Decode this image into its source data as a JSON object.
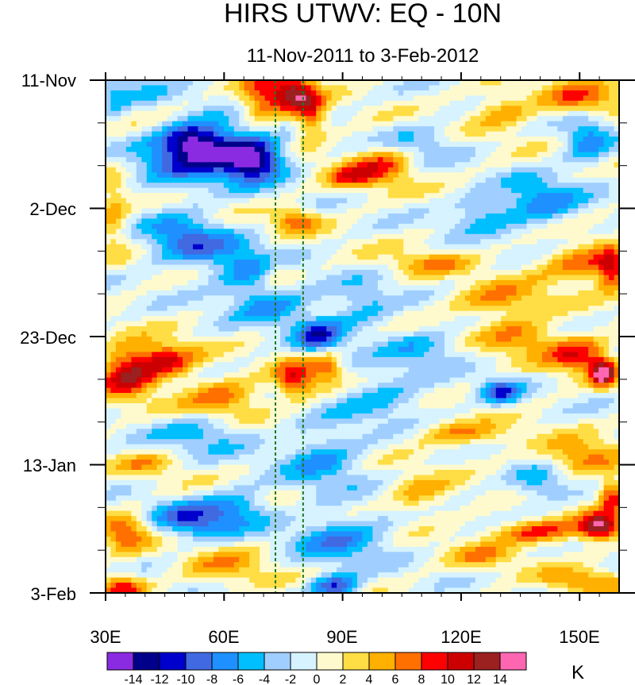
{
  "chart_data": {
    "type": "heatmap",
    "title": "HIRS UTWV: EQ - 10N",
    "subtitle": "11-Nov-2011 to 3-Feb-2012",
    "x_axis": {
      "range": [
        30,
        160
      ],
      "ticks": [
        30,
        60,
        90,
        120,
        150
      ],
      "tick_labels": [
        "30E",
        "60E",
        "90E",
        "120E",
        "150E"
      ]
    },
    "y_axis": {
      "range_days": [
        0,
        84
      ],
      "ticks_days": [
        0,
        21,
        42,
        63,
        84
      ],
      "tick_labels": [
        "11-Nov",
        "2-Dec",
        "23-Dec",
        "13-Jan",
        "3-Feb"
      ],
      "minor_tick_step_days": 7
    },
    "reference_lines_lon": [
      73,
      80
    ],
    "colorbar": {
      "unit": "K",
      "levels": [
        -14,
        -12,
        -10,
        -8,
        -6,
        -4,
        -2,
        0,
        2,
        4,
        6,
        8,
        10,
        12,
        14
      ],
      "level_labels": [
        "-14",
        "-12",
        "-10",
        "-8",
        "-6",
        "-4",
        "-2",
        "0",
        "2",
        "4",
        "6",
        "8",
        "10",
        "12",
        "14"
      ],
      "colors": [
        "#8a2be2",
        "#00008b",
        "#0000cd",
        "#4169e1",
        "#1e90ff",
        "#00bfff",
        "#a0cfff",
        "#d6f3ff",
        "#fffacd",
        "#ffdd44",
        "#ffb000",
        "#ff7000",
        "#ff0000",
        "#cc0000",
        "#9b2020",
        "#ff66b2"
      ]
    },
    "anomaly_features": [
      {
        "lon": 70,
        "day": 3,
        "value": 9,
        "lon_w": 6,
        "day_w": 4
      },
      {
        "lon": 78,
        "day": 2,
        "value": 11,
        "lon_w": 5,
        "day_w": 3
      },
      {
        "lon": 82,
        "day": 6,
        "value": 8,
        "lon_w": 4,
        "day_w": 4
      },
      {
        "lon": 40,
        "day": 2,
        "value": -3,
        "lon_w": 6,
        "day_w": 3
      },
      {
        "lon": 32,
        "day": 3,
        "value": -5,
        "lon_w": 4,
        "day_w": 3
      },
      {
        "lon": 52,
        "day": 10,
        "value": -11,
        "lon_w": 8,
        "day_w": 3
      },
      {
        "lon": 68,
        "day": 13,
        "value": -12,
        "lon_w": 7,
        "day_w": 3
      },
      {
        "lon": 60,
        "day": 12,
        "value": -9,
        "lon_w": 12,
        "day_w": 5
      },
      {
        "lon": 45,
        "day": 14,
        "value": -5,
        "lon_w": 10,
        "day_w": 4
      },
      {
        "lon": 100,
        "day": 14,
        "value": 8,
        "lon_w": 8,
        "day_w": 3
      },
      {
        "lon": 92,
        "day": 16,
        "value": 7,
        "lon_w": 6,
        "day_w": 2
      },
      {
        "lon": 130,
        "day": 5,
        "value": 5,
        "lon_w": 8,
        "day_w": 3
      },
      {
        "lon": 150,
        "day": 3,
        "value": 7,
        "lon_w": 10,
        "day_w": 3
      },
      {
        "lon": 152,
        "day": 10,
        "value": -7,
        "lon_w": 6,
        "day_w": 4
      },
      {
        "lon": 110,
        "day": 10,
        "value": -4,
        "lon_w": 10,
        "day_w": 3
      },
      {
        "lon": 32,
        "day": 22,
        "value": 5,
        "lon_w": 4,
        "day_w": 6
      },
      {
        "lon": 78,
        "day": 23,
        "value": 7,
        "lon_w": 6,
        "day_w": 2
      },
      {
        "lon": 50,
        "day": 26,
        "value": -8,
        "lon_w": 10,
        "day_w": 4
      },
      {
        "lon": 64,
        "day": 30,
        "value": -6,
        "lon_w": 10,
        "day_w": 4
      },
      {
        "lon": 74,
        "day": 32,
        "value": 5,
        "lon_w": 5,
        "day_w": 3
      },
      {
        "lon": 72,
        "day": 36,
        "value": -7,
        "lon_w": 10,
        "day_w": 4
      },
      {
        "lon": 84,
        "day": 42,
        "value": -10,
        "lon_w": 6,
        "day_w": 3
      },
      {
        "lon": 95,
        "day": 37,
        "value": -5,
        "lon_w": 8,
        "day_w": 4
      },
      {
        "lon": 112,
        "day": 30,
        "value": 5,
        "lon_w": 10,
        "day_w": 2
      },
      {
        "lon": 130,
        "day": 36,
        "value": 6,
        "lon_w": 12,
        "day_w": 3
      },
      {
        "lon": 150,
        "day": 30,
        "value": 7,
        "lon_w": 10,
        "day_w": 3
      },
      {
        "lon": 158,
        "day": 31,
        "value": 10,
        "lon_w": 4,
        "day_w": 3
      },
      {
        "lon": 140,
        "day": 20,
        "value": -7,
        "lon_w": 10,
        "day_w": 4
      },
      {
        "lon": 125,
        "day": 22,
        "value": -5,
        "lon_w": 8,
        "day_w": 3
      },
      {
        "lon": 35,
        "day": 48,
        "value": 11,
        "lon_w": 7,
        "day_w": 4
      },
      {
        "lon": 45,
        "day": 46,
        "value": 10,
        "lon_w": 8,
        "day_w": 3
      },
      {
        "lon": 60,
        "day": 52,
        "value": 7,
        "lon_w": 10,
        "day_w": 3
      },
      {
        "lon": 78,
        "day": 49,
        "value": 10,
        "lon_w": 5,
        "day_w": 3
      },
      {
        "lon": 86,
        "day": 47,
        "value": 7,
        "lon_w": 4,
        "day_w": 3
      },
      {
        "lon": 150,
        "day": 45,
        "value": 9,
        "lon_w": 8,
        "day_w": 3
      },
      {
        "lon": 156,
        "day": 48,
        "value": 15,
        "lon_w": 3,
        "day_w": 2
      },
      {
        "lon": 135,
        "day": 42,
        "value": 6,
        "lon_w": 10,
        "day_w": 3
      },
      {
        "lon": 110,
        "day": 44,
        "value": -5,
        "lon_w": 10,
        "day_w": 3
      },
      {
        "lon": 130,
        "day": 51,
        "value": -9,
        "lon_w": 5,
        "day_w": 2
      },
      {
        "lon": 100,
        "day": 52,
        "value": -5,
        "lon_w": 12,
        "day_w": 4
      },
      {
        "lon": 55,
        "day": 58,
        "value": -5,
        "lon_w": 12,
        "day_w": 3
      },
      {
        "lon": 85,
        "day": 62,
        "value": -6,
        "lon_w": 10,
        "day_w": 5
      },
      {
        "lon": 40,
        "day": 63,
        "value": 4,
        "lon_w": 8,
        "day_w": 2
      },
      {
        "lon": 120,
        "day": 58,
        "value": 6,
        "lon_w": 12,
        "day_w": 2
      },
      {
        "lon": 150,
        "day": 62,
        "value": 7,
        "lon_w": 10,
        "day_w": 3
      },
      {
        "lon": 140,
        "day": 66,
        "value": -6,
        "lon_w": 8,
        "day_w": 3
      },
      {
        "lon": 52,
        "day": 72,
        "value": -9,
        "lon_w": 10,
        "day_w": 3
      },
      {
        "lon": 35,
        "day": 74,
        "value": 8,
        "lon_w": 6,
        "day_w": 3
      },
      {
        "lon": 64,
        "day": 70,
        "value": -6,
        "lon_w": 8,
        "day_w": 3
      },
      {
        "lon": 90,
        "day": 75,
        "value": -7,
        "lon_w": 12,
        "day_w": 4
      },
      {
        "lon": 110,
        "day": 68,
        "value": 5,
        "lon_w": 8,
        "day_w": 3
      },
      {
        "lon": 140,
        "day": 74,
        "value": 9,
        "lon_w": 12,
        "day_w": 2
      },
      {
        "lon": 155,
        "day": 73,
        "value": 14,
        "lon_w": 5,
        "day_w": 2
      },
      {
        "lon": 158,
        "day": 68,
        "value": 9,
        "lon_w": 3,
        "day_w": 3
      },
      {
        "lon": 125,
        "day": 78,
        "value": 5,
        "lon_w": 8,
        "day_w": 2
      },
      {
        "lon": 34,
        "day": 83,
        "value": 9,
        "lon_w": 6,
        "day_w": 2
      },
      {
        "lon": 60,
        "day": 80,
        "value": 5,
        "lon_w": 10,
        "day_w": 3
      },
      {
        "lon": 88,
        "day": 83,
        "value": -10,
        "lon_w": 6,
        "day_w": 2
      },
      {
        "lon": 150,
        "day": 82,
        "value": 6,
        "lon_w": 10,
        "day_w": 2
      }
    ]
  }
}
